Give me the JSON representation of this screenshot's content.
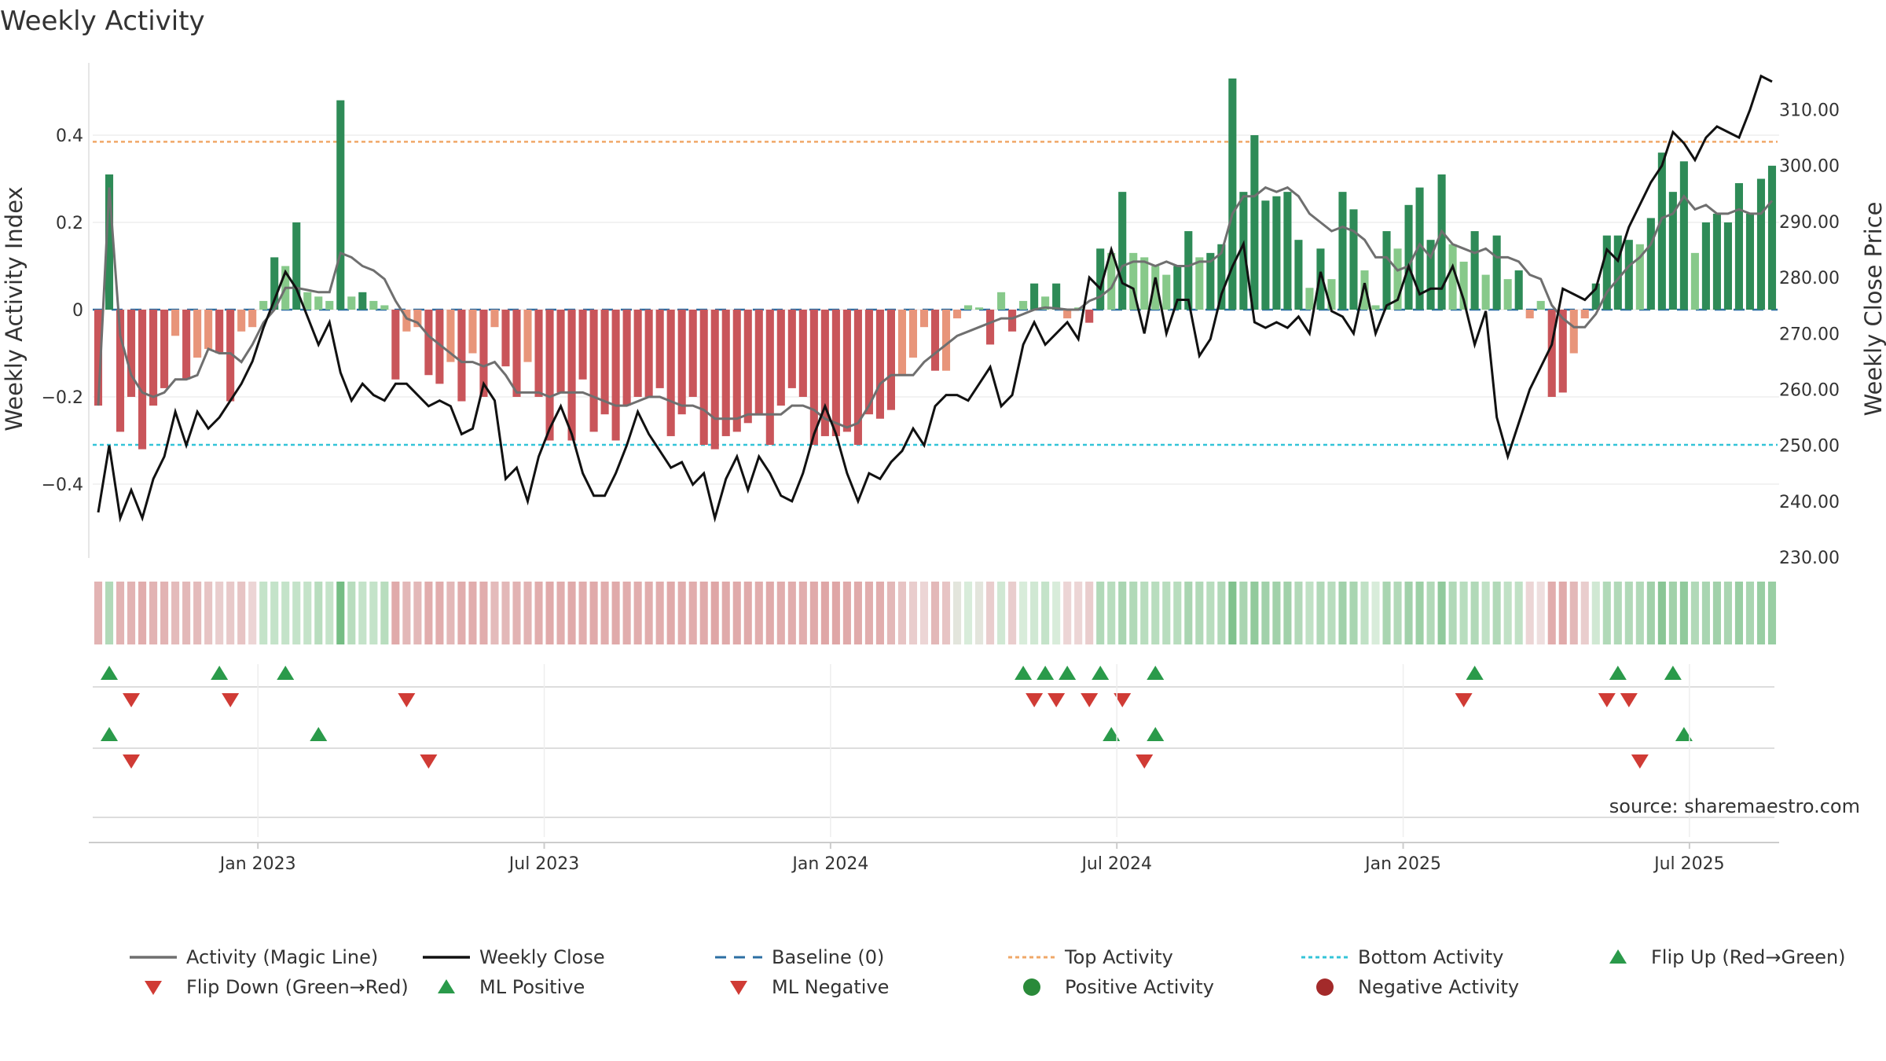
{
  "chart_data": {
    "type": "bar+line",
    "title": "Weekly Activity",
    "ylabel_left": "Weekly Activity Index",
    "ylabel_right": "Weekly Close Price",
    "source": "source: sharemaestro.com",
    "start_week": "2022-09-23",
    "left_ylim": [
      -0.57,
      0.57
    ],
    "right_ylim": [
      230,
      318
    ],
    "left_ticks": [
      {
        "v": 0.4,
        "label": "0.4"
      },
      {
        "v": 0.2,
        "label": "0.2"
      },
      {
        "v": 0,
        "label": "0"
      },
      {
        "v": -0.2,
        "label": "−0.2"
      },
      {
        "v": -0.4,
        "label": "−0.4"
      }
    ],
    "right_ticks": [
      {
        "v": 310,
        "label": "310.00"
      },
      {
        "v": 300,
        "label": "300.00"
      },
      {
        "v": 290,
        "label": "290.00"
      },
      {
        "v": 280,
        "label": "280.00"
      },
      {
        "v": 270,
        "label": "270.00"
      },
      {
        "v": 260,
        "label": "260.00"
      },
      {
        "v": 250,
        "label": "250.00"
      },
      {
        "v": 240,
        "label": "240.00"
      },
      {
        "v": 230,
        "label": "230.00"
      }
    ],
    "x_ticks": [
      {
        "week": 14.5,
        "label": "Jan 2023"
      },
      {
        "week": 40.5,
        "label": "Jul 2023"
      },
      {
        "week": 66.5,
        "label": "Jan 2024"
      },
      {
        "week": 92.5,
        "label": "Jul 2024"
      },
      {
        "week": 118.5,
        "label": "Jan 2025"
      },
      {
        "week": 144.5,
        "label": "Jul 2025"
      }
    ],
    "top_activity": 0.385,
    "bottom_activity": -0.31,
    "activity": [
      -0.22,
      0.31,
      -0.28,
      -0.2,
      -0.32,
      -0.22,
      -0.18,
      -0.06,
      -0.16,
      -0.11,
      -0.09,
      -0.1,
      -0.21,
      -0.05,
      -0.04,
      0.02,
      0.12,
      0.1,
      0.2,
      0.04,
      0.03,
      0.02,
      0.48,
      0.03,
      0.04,
      0.02,
      0.01,
      -0.16,
      -0.05,
      -0.04,
      -0.15,
      -0.17,
      -0.12,
      -0.21,
      -0.1,
      -0.2,
      -0.04,
      -0.13,
      -0.2,
      -0.12,
      -0.2,
      -0.3,
      -0.19,
      -0.3,
      -0.16,
      -0.28,
      -0.24,
      -0.3,
      -0.22,
      -0.2,
      -0.2,
      -0.18,
      -0.29,
      -0.24,
      -0.2,
      -0.31,
      -0.32,
      -0.29,
      -0.28,
      -0.26,
      -0.24,
      -0.31,
      -0.22,
      -0.18,
      -0.2,
      -0.31,
      -0.29,
      -0.29,
      -0.28,
      -0.31,
      -0.24,
      -0.25,
      -0.23,
      -0.15,
      -0.11,
      -0.04,
      -0.14,
      -0.14,
      -0.02,
      0.01,
      0.005,
      -0.08,
      0.04,
      -0.05,
      0.02,
      0.06,
      0.03,
      0.06,
      -0.02,
      0.005,
      -0.03,
      0.14,
      0.13,
      0.27,
      0.13,
      0.12,
      0.1,
      0.08,
      0.1,
      0.18,
      0.12,
      0.13,
      0.15,
      0.53,
      0.27,
      0.4,
      0.25,
      0.26,
      0.27,
      0.16,
      0.05,
      0.14,
      0.07,
      0.27,
      0.23,
      0.09,
      0.01,
      0.18,
      0.14,
      0.24,
      0.28,
      0.16,
      0.31,
      0.15,
      0.11,
      0.18,
      0.08,
      0.17,
      0.07,
      0.09,
      -0.02,
      0.02,
      -0.2,
      -0.19,
      -0.1,
      -0.02,
      0.06,
      0.17,
      0.17,
      0.16,
      0.15,
      0.21,
      0.36,
      0.27,
      0.34,
      0.13,
      0.2,
      0.22,
      0.2,
      0.29,
      0.22,
      0.3,
      0.33
    ],
    "magic_line": [
      -0.22,
      0.28,
      -0.06,
      -0.15,
      -0.19,
      -0.2,
      -0.19,
      -0.16,
      -0.16,
      -0.15,
      -0.09,
      -0.1,
      -0.1,
      -0.12,
      -0.08,
      -0.03,
      0,
      0.05,
      0.05,
      0.045,
      0.04,
      0.04,
      0.13,
      0.12,
      0.1,
      0.09,
      0.07,
      0.02,
      -0.02,
      -0.03,
      -0.06,
      -0.08,
      -0.1,
      -0.12,
      -0.12,
      -0.13,
      -0.12,
      -0.15,
      -0.19,
      -0.19,
      -0.19,
      -0.2,
      -0.19,
      -0.19,
      -0.19,
      -0.2,
      -0.21,
      -0.22,
      -0.22,
      -0.21,
      -0.2,
      -0.2,
      -0.21,
      -0.22,
      -0.22,
      -0.23,
      -0.25,
      -0.25,
      -0.25,
      -0.24,
      -0.24,
      -0.24,
      -0.24,
      -0.22,
      -0.22,
      -0.23,
      -0.25,
      -0.26,
      -0.27,
      -0.26,
      -0.22,
      -0.17,
      -0.15,
      -0.15,
      -0.15,
      -0.12,
      -0.1,
      -0.08,
      -0.06,
      -0.05,
      -0.04,
      -0.03,
      -0.02,
      -0.02,
      -0.01,
      0,
      0.005,
      0.003,
      0,
      0,
      0.02,
      0.03,
      0.05,
      0.1,
      0.11,
      0.11,
      0.1,
      0.11,
      0.1,
      0.1,
      0.11,
      0.11,
      0.13,
      0.22,
      0.26,
      0.26,
      0.28,
      0.27,
      0.28,
      0.26,
      0.22,
      0.2,
      0.18,
      0.19,
      0.18,
      0.16,
      0.12,
      0.12,
      0.09,
      0.1,
      0.15,
      0.12,
      0.18,
      0.15,
      0.14,
      0.13,
      0.14,
      0.12,
      0.12,
      0.11,
      0.08,
      0.07,
      0.01,
      -0.02,
      -0.04,
      -0.04,
      -0.01,
      0.04,
      0.07,
      0.1,
      0.12,
      0.15,
      0.21,
      0.22,
      0.26,
      0.23,
      0.24,
      0.22,
      0.22,
      0.23,
      0.22,
      0.22,
      0.25
    ],
    "weekly_close": [
      238,
      250,
      237,
      242,
      237,
      244,
      248,
      256,
      250,
      256,
      253,
      255,
      258,
      261,
      265,
      271,
      276,
      281,
      278,
      273,
      268,
      272,
      263,
      258,
      261,
      259,
      258,
      261,
      261,
      259,
      257,
      258,
      257,
      252,
      253,
      261,
      258,
      244,
      246,
      240,
      248,
      253,
      257,
      252,
      245,
      241,
      241,
      245,
      250,
      256,
      252,
      249,
      246,
      247,
      243,
      245,
      237,
      244,
      248,
      242,
      248,
      245,
      241,
      240,
      245,
      252,
      257,
      252,
      245,
      240,
      245,
      244,
      247,
      249,
      253,
      250,
      257,
      259,
      259,
      258,
      261,
      264,
      257,
      259,
      268,
      272,
      268,
      270,
      272,
      269,
      280,
      278,
      285,
      279,
      278,
      270,
      280,
      270,
      276,
      276,
      266,
      269,
      277,
      282,
      286,
      272,
      271,
      272,
      271,
      273,
      270,
      281,
      274,
      273,
      270,
      279,
      270,
      275,
      276,
      282,
      277,
      278,
      278,
      282,
      276,
      268,
      274,
      255,
      248,
      254,
      260,
      264,
      268,
      278,
      277,
      276,
      278,
      285,
      283,
      289,
      293,
      297,
      300,
      306,
      304,
      301,
      305,
      307,
      306,
      305,
      310,
      316,
      315
    ],
    "bands_green_pct": [
      0.25,
      0.7,
      0.25,
      0.25,
      0.22,
      0.25,
      0.25,
      0.3,
      0.28,
      0.3,
      0.35,
      0.4,
      0.38,
      0.35,
      0.45,
      0.65,
      0.65,
      0.65,
      0.65,
      0.65,
      0.68,
      0.65,
      0.85,
      0.68,
      0.65,
      0.65,
      0.68,
      0.2,
      0.28,
      0.28,
      0.22,
      0.22,
      0.28,
      0.22,
      0.22,
      0.22,
      0.3,
      0.28,
      0.25,
      0.25,
      0.22,
      0.2,
      0.22,
      0.2,
      0.22,
      0.2,
      0.22,
      0.2,
      0.22,
      0.22,
      0.22,
      0.22,
      0.2,
      0.22,
      0.22,
      0.2,
      0.18,
      0.2,
      0.2,
      0.2,
      0.22,
      0.2,
      0.22,
      0.22,
      0.22,
      0.2,
      0.18,
      0.18,
      0.2,
      0.2,
      0.22,
      0.22,
      0.28,
      0.35,
      0.4,
      0.45,
      0.28,
      0.35,
      0.55,
      0.6,
      0.55,
      0.4,
      0.62,
      0.4,
      0.6,
      0.62,
      0.65,
      0.6,
      0.45,
      0.45,
      0.4,
      0.7,
      0.68,
      0.72,
      0.7,
      0.68,
      0.68,
      0.68,
      0.68,
      0.72,
      0.7,
      0.68,
      0.7,
      0.82,
      0.72,
      0.78,
      0.74,
      0.74,
      0.74,
      0.7,
      0.66,
      0.7,
      0.68,
      0.74,
      0.72,
      0.66,
      0.6,
      0.72,
      0.7,
      0.74,
      0.75,
      0.7,
      0.78,
      0.7,
      0.68,
      0.7,
      0.66,
      0.7,
      0.66,
      0.66,
      0.45,
      0.5,
      0.22,
      0.2,
      0.28,
      0.4,
      0.62,
      0.7,
      0.7,
      0.7,
      0.7,
      0.74,
      0.8,
      0.74,
      0.78,
      0.7,
      0.72,
      0.74,
      0.72,
      0.76,
      0.72,
      0.76,
      0.76
    ],
    "flip_up": [
      1,
      11,
      17,
      84,
      86,
      88,
      91,
      96,
      125,
      138,
      143
    ],
    "flip_down": [
      3,
      12,
      28,
      85,
      87,
      90,
      93,
      124,
      137,
      139
    ],
    "ml_positive": [
      1,
      20,
      92,
      96,
      144
    ],
    "ml_negative": [
      3,
      30,
      95,
      140
    ]
  },
  "legend": [
    {
      "label": "Activity (Magic Line)",
      "symbol": "line",
      "color": "#6f6f6f"
    },
    {
      "label": "Weekly Close",
      "symbol": "line",
      "color": "#111111"
    },
    {
      "label": "Baseline (0)",
      "symbol": "dash",
      "color": "#2c6fa3"
    },
    {
      "label": "Top Activity",
      "symbol": "dot",
      "color": "#f0a868"
    },
    {
      "label": "Bottom Activity",
      "symbol": "dot",
      "color": "#34c4d8"
    },
    {
      "label": "Flip Up (Red→Green)",
      "symbol": "tri-up",
      "color": "#2a9a4a"
    },
    {
      "label": "Flip Down (Green→Red)",
      "symbol": "tri-down",
      "color": "#d03b35"
    },
    {
      "label": "ML Positive",
      "symbol": "tri-up",
      "color": "#2a9a4a"
    },
    {
      "label": "ML Negative",
      "symbol": "tri-down",
      "color": "#d03b35"
    },
    {
      "label": "Positive Activity",
      "symbol": "circle",
      "color": "#2a8a3a"
    },
    {
      "label": "Negative Activity",
      "symbol": "circle",
      "color": "#a32a2a"
    }
  ],
  "colors": {
    "green_dark": "#2e8b57",
    "green_light": "#87c98a",
    "red_dark": "#c9555a",
    "red_light": "#e8957a",
    "magic_line": "#6f6f6f",
    "close_line": "#111111",
    "baseline": "#2c6fa3",
    "top_line": "#f0a868",
    "bottom_line": "#34c4d8",
    "flip_up": "#2a9a4a",
    "flip_down": "#d03b35"
  }
}
